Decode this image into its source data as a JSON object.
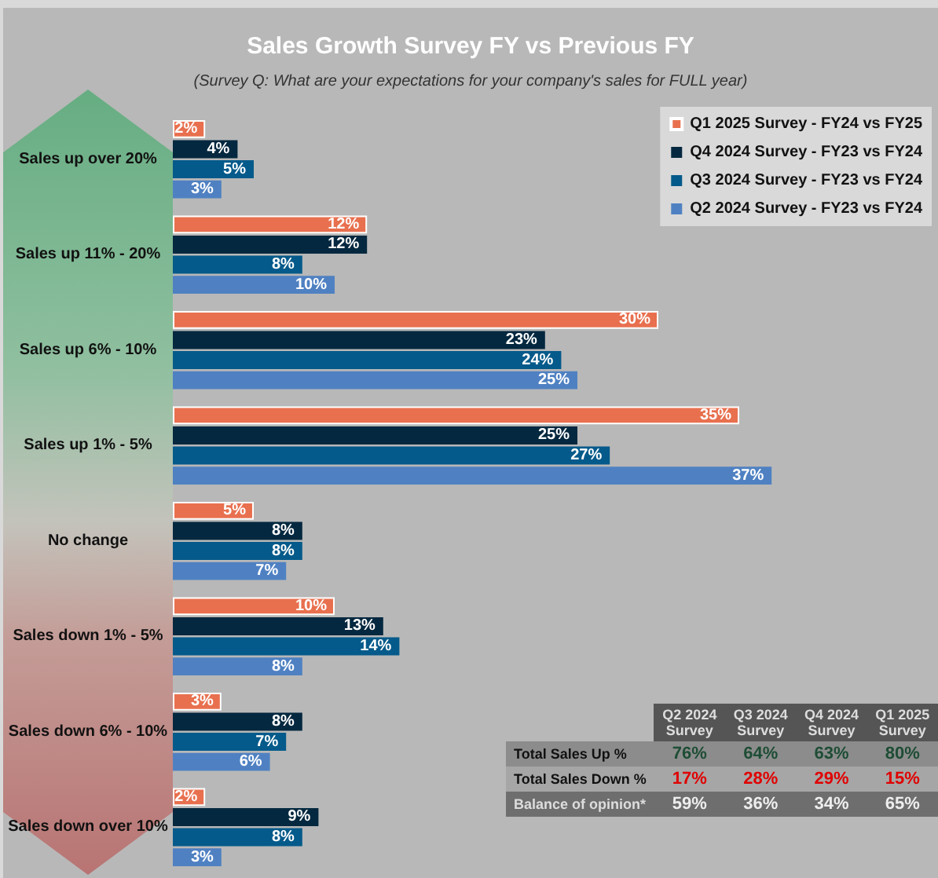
{
  "chart_data": {
    "type": "bar",
    "orientation": "horizontal",
    "title": "Sales Growth Survey FY vs Previous FY",
    "subtitle": "(Survey Q: What are your expectations for your company's sales for FULL year)",
    "categories": [
      "Sales up over 20%",
      "Sales up 11% - 20%",
      "Sales up 6% - 10%",
      "Sales up 1% - 5%",
      "No change",
      "Sales down 1% - 5%",
      "Sales down 6% - 10%",
      "Sales down over 10%"
    ],
    "series": [
      {
        "name": "Q1 2025 Survey - FY24 vs FY25",
        "color": "#e8704f",
        "values": [
          2,
          12,
          30,
          35,
          5,
          10,
          3,
          2
        ],
        "value_labels": [
          "2%",
          "12%",
          "30%",
          "35%",
          "5%",
          "10%",
          "3%",
          "2%"
        ]
      },
      {
        "name": "Q4 2024 Survey - FY23 vs FY24",
        "color": "#04283f",
        "values": [
          4,
          12,
          23,
          25,
          8,
          13,
          8,
          9
        ],
        "value_labels": [
          "4%",
          "12%",
          "23%",
          "25%",
          "8%",
          "13%",
          "8%",
          "9%"
        ]
      },
      {
        "name": "Q3 2024 Survey - FY23 vs FY24",
        "color": "#045a8a",
        "values": [
          5,
          8,
          24,
          27,
          8,
          14,
          7,
          8
        ],
        "value_labels": [
          "5%",
          "8%",
          "24%",
          "27%",
          "8%",
          "14%",
          "7%",
          "8%"
        ]
      },
      {
        "name": "Q2 2024 Survey - FY23 vs FY24",
        "color": "#4f81c2",
        "values": [
          3,
          10,
          25,
          37,
          7,
          8,
          6,
          3
        ],
        "value_labels": [
          "3%",
          "10%",
          "25%",
          "37%",
          "7%",
          "8%",
          "6%",
          "3%"
        ]
      }
    ],
    "legend": "top right",
    "grid": false,
    "annotations": [
      "Q2 2024 Survey",
      "Q3 2024 Survey",
      "Q4 2024 Survey",
      "Q1 2025 Survey",
      "Total Sales Up %",
      "76%",
      "64%",
      "63%",
      "80%",
      "Total Sales Down %",
      "17%",
      "28%",
      "29%",
      "15%",
      "Balance of opinion*",
      "59%",
      "36%",
      "34%",
      "65%"
    ]
  }
}
